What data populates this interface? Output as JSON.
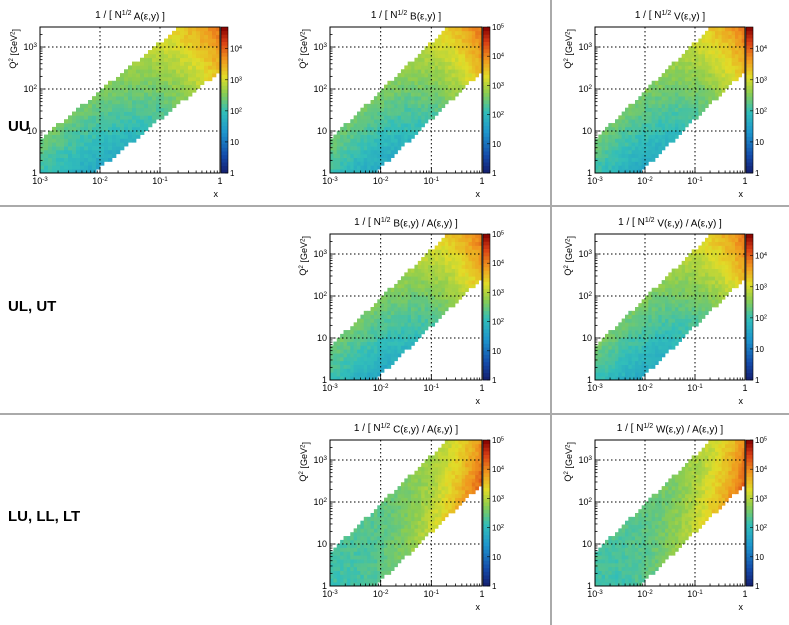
{
  "rows": [
    {
      "label": "UU"
    },
    {
      "label": "UL, UT"
    },
    {
      "label": "LU, LL, LT"
    }
  ],
  "colors": {
    "separator": "#aaaaaa",
    "grid": "#000000"
  },
  "chart_data": [
    {
      "type": "heatmap",
      "title_parts": [
        "1 / [ N",
        "1/2",
        " A(ε,y) ]"
      ],
      "xlabel": "x",
      "ylabel_parts": [
        "Q",
        "2",
        " [GeV",
        "2",
        "]"
      ],
      "xlim": [
        0.001,
        1
      ],
      "ylim": [
        1,
        3000
      ],
      "zlim": [
        1,
        50000
      ],
      "scale": "log",
      "xticks": [
        {
          "v": 0.001,
          "b": "10",
          "e": "-3"
        },
        {
          "v": 0.01,
          "b": "10",
          "e": "-2"
        },
        {
          "v": 0.1,
          "b": "10",
          "e": "-1"
        },
        {
          "v": 1,
          "b": "1",
          "e": ""
        }
      ],
      "yticks": [
        {
          "v": 1,
          "b": "1",
          "e": ""
        },
        {
          "v": 10,
          "b": "10",
          "e": ""
        },
        {
          "v": 100,
          "b": "10",
          "e": "2"
        },
        {
          "v": 1000,
          "b": "10",
          "e": "3"
        }
      ],
      "zticks": [
        {
          "v": 1,
          "b": "1",
          "e": ""
        },
        {
          "v": 10,
          "b": "10",
          "e": ""
        },
        {
          "v": 100,
          "b": "10",
          "e": "2"
        },
        {
          "v": 1000,
          "b": "10",
          "e": "3"
        },
        {
          "v": 10000,
          "b": "10",
          "e": "4"
        }
      ],
      "pattern": "base"
    },
    {
      "type": "heatmap",
      "title_parts": [
        "1 / [ N",
        "1/2",
        " B(ε,y) ]"
      ],
      "xlabel": "x",
      "ylabel_parts": [
        "Q",
        "2",
        " [GeV",
        "2",
        "]"
      ],
      "xlim": [
        0.001,
        1
      ],
      "ylim": [
        1,
        3000
      ],
      "zlim": [
        1,
        100000
      ],
      "scale": "log",
      "xticks": [
        {
          "v": 0.001,
          "b": "10",
          "e": "-3"
        },
        {
          "v": 0.01,
          "b": "10",
          "e": "-2"
        },
        {
          "v": 0.1,
          "b": "10",
          "e": "-1"
        },
        {
          "v": 1,
          "b": "1",
          "e": ""
        }
      ],
      "yticks": [
        {
          "v": 1,
          "b": "1",
          "e": ""
        },
        {
          "v": 10,
          "b": "10",
          "e": ""
        },
        {
          "v": 100,
          "b": "10",
          "e": "2"
        },
        {
          "v": 1000,
          "b": "10",
          "e": "3"
        }
      ],
      "zticks": [
        {
          "v": 1,
          "b": "1",
          "e": ""
        },
        {
          "v": 10,
          "b": "10",
          "e": ""
        },
        {
          "v": 100,
          "b": "10",
          "e": "2"
        },
        {
          "v": 1000,
          "b": "10",
          "e": "3"
        },
        {
          "v": 10000,
          "b": "10",
          "e": "4"
        },
        {
          "v": 100000,
          "b": "10",
          "e": "5"
        }
      ],
      "pattern": "base"
    },
    {
      "type": "heatmap",
      "title_parts": [
        "1 / [ N",
        "1/2",
        " V(ε,y) ]"
      ],
      "xlabel": "x",
      "ylabel_parts": [
        "Q",
        "2",
        " [GeV",
        "2",
        "]"
      ],
      "xlim": [
        0.001,
        1
      ],
      "ylim": [
        1,
        3000
      ],
      "zlim": [
        1,
        50000
      ],
      "scale": "log",
      "xticks": [
        {
          "v": 0.001,
          "b": "10",
          "e": "-3"
        },
        {
          "v": 0.01,
          "b": "10",
          "e": "-2"
        },
        {
          "v": 0.1,
          "b": "10",
          "e": "-1"
        },
        {
          "v": 1,
          "b": "1",
          "e": ""
        }
      ],
      "yticks": [
        {
          "v": 1,
          "b": "1",
          "e": ""
        },
        {
          "v": 10,
          "b": "10",
          "e": ""
        },
        {
          "v": 100,
          "b": "10",
          "e": "2"
        },
        {
          "v": 1000,
          "b": "10",
          "e": "3"
        }
      ],
      "zticks": [
        {
          "v": 1,
          "b": "1",
          "e": ""
        },
        {
          "v": 10,
          "b": "10",
          "e": ""
        },
        {
          "v": 100,
          "b": "10",
          "e": "2"
        },
        {
          "v": 1000,
          "b": "10",
          "e": "3"
        },
        {
          "v": 10000,
          "b": "10",
          "e": "4"
        }
      ],
      "pattern": "base"
    },
    {
      "type": "heatmap",
      "title_parts": [
        "1 / [ N",
        "1/2",
        " B(ε,y) / A(ε,y) ]"
      ],
      "xlabel": "x",
      "ylabel_parts": [
        "Q",
        "2",
        " [GeV",
        "2",
        "]"
      ],
      "xlim": [
        0.001,
        1
      ],
      "ylim": [
        1,
        3000
      ],
      "zlim": [
        1,
        100000
      ],
      "scale": "log",
      "xticks": [
        {
          "v": 0.001,
          "b": "10",
          "e": "-3"
        },
        {
          "v": 0.01,
          "b": "10",
          "e": "-2"
        },
        {
          "v": 0.1,
          "b": "10",
          "e": "-1"
        },
        {
          "v": 1,
          "b": "1",
          "e": ""
        }
      ],
      "yticks": [
        {
          "v": 1,
          "b": "1",
          "e": ""
        },
        {
          "v": 10,
          "b": "10",
          "e": ""
        },
        {
          "v": 100,
          "b": "10",
          "e": "2"
        },
        {
          "v": 1000,
          "b": "10",
          "e": "3"
        }
      ],
      "zticks": [
        {
          "v": 1,
          "b": "1",
          "e": ""
        },
        {
          "v": 10,
          "b": "10",
          "e": ""
        },
        {
          "v": 100,
          "b": "10",
          "e": "2"
        },
        {
          "v": 1000,
          "b": "10",
          "e": "3"
        },
        {
          "v": 10000,
          "b": "10",
          "e": "4"
        },
        {
          "v": 100000,
          "b": "10",
          "e": "5"
        }
      ],
      "pattern": "base"
    },
    {
      "type": "heatmap",
      "title_parts": [
        "1 / [ N",
        "1/2",
        " V(ε,y) / A(ε,y) ]"
      ],
      "xlabel": "x",
      "ylabel_parts": [
        "Q",
        "2",
        " [GeV",
        "2",
        "]"
      ],
      "xlim": [
        0.001,
        1
      ],
      "ylim": [
        1,
        3000
      ],
      "zlim": [
        1,
        50000
      ],
      "scale": "log",
      "xticks": [
        {
          "v": 0.001,
          "b": "10",
          "e": "-3"
        },
        {
          "v": 0.01,
          "b": "10",
          "e": "-2"
        },
        {
          "v": 0.1,
          "b": "10",
          "e": "-1"
        },
        {
          "v": 1,
          "b": "1",
          "e": ""
        }
      ],
      "yticks": [
        {
          "v": 1,
          "b": "1",
          "e": ""
        },
        {
          "v": 10,
          "b": "10",
          "e": ""
        },
        {
          "v": 100,
          "b": "10",
          "e": "2"
        },
        {
          "v": 1000,
          "b": "10",
          "e": "3"
        }
      ],
      "zticks": [
        {
          "v": 1,
          "b": "1",
          "e": ""
        },
        {
          "v": 10,
          "b": "10",
          "e": ""
        },
        {
          "v": 100,
          "b": "10",
          "e": "2"
        },
        {
          "v": 1000,
          "b": "10",
          "e": "3"
        },
        {
          "v": 10000,
          "b": "10",
          "e": "4"
        }
      ],
      "pattern": "base"
    },
    {
      "type": "heatmap",
      "title_parts": [
        "1 / [ N",
        "1/2",
        " C(ε,y) / A(ε,y) ]"
      ],
      "xlabel": "x",
      "ylabel_parts": [
        "Q",
        "2",
        " [GeV",
        "2",
        "]"
      ],
      "xlim": [
        0.001,
        1
      ],
      "ylim": [
        1,
        3000
      ],
      "zlim": [
        1,
        100000
      ],
      "scale": "log",
      "xticks": [
        {
          "v": 0.001,
          "b": "10",
          "e": "-3"
        },
        {
          "v": 0.01,
          "b": "10",
          "e": "-2"
        },
        {
          "v": 0.1,
          "b": "10",
          "e": "-1"
        },
        {
          "v": 1,
          "b": "1",
          "e": ""
        }
      ],
      "yticks": [
        {
          "v": 1,
          "b": "1",
          "e": ""
        },
        {
          "v": 10,
          "b": "10",
          "e": ""
        },
        {
          "v": 100,
          "b": "10",
          "e": "2"
        },
        {
          "v": 1000,
          "b": "10",
          "e": "3"
        }
      ],
      "zticks": [
        {
          "v": 1,
          "b": "1",
          "e": ""
        },
        {
          "v": 10,
          "b": "10",
          "e": ""
        },
        {
          "v": 100,
          "b": "10",
          "e": "2"
        },
        {
          "v": 1000,
          "b": "10",
          "e": "3"
        },
        {
          "v": 10000,
          "b": "10",
          "e": "4"
        },
        {
          "v": 100000,
          "b": "10",
          "e": "5"
        }
      ],
      "pattern": "polarized"
    },
    {
      "type": "heatmap",
      "title_parts": [
        "1 / [ N",
        "1/2",
        " W(ε,y) / A(ε,y) ]"
      ],
      "xlabel": "x",
      "ylabel_parts": [
        "Q",
        "2",
        " [GeV",
        "2",
        "]"
      ],
      "xlim": [
        0.001,
        1
      ],
      "ylim": [
        1,
        3000
      ],
      "zlim": [
        1,
        100000
      ],
      "scale": "log",
      "xticks": [
        {
          "v": 0.001,
          "b": "10",
          "e": "-3"
        },
        {
          "v": 0.01,
          "b": "10",
          "e": "-2"
        },
        {
          "v": 0.1,
          "b": "10",
          "e": "-1"
        },
        {
          "v": 1,
          "b": "1",
          "e": ""
        }
      ],
      "yticks": [
        {
          "v": 1,
          "b": "1",
          "e": ""
        },
        {
          "v": 10,
          "b": "10",
          "e": ""
        },
        {
          "v": 100,
          "b": "10",
          "e": "2"
        },
        {
          "v": 1000,
          "b": "10",
          "e": "3"
        }
      ],
      "zticks": [
        {
          "v": 1,
          "b": "1",
          "e": ""
        },
        {
          "v": 10,
          "b": "10",
          "e": ""
        },
        {
          "v": 100,
          "b": "10",
          "e": "2"
        },
        {
          "v": 1000,
          "b": "10",
          "e": "3"
        },
        {
          "v": 10000,
          "b": "10",
          "e": "4"
        },
        {
          "v": 100000,
          "b": "10",
          "e": "5"
        }
      ],
      "pattern": "polarized"
    }
  ]
}
